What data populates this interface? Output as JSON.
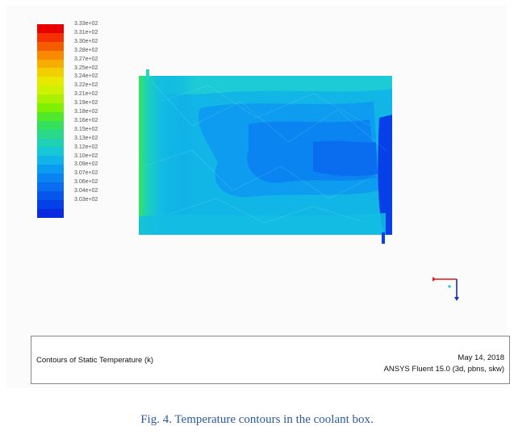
{
  "legend": {
    "colors": [
      "#e80000",
      "#f23000",
      "#f55c00",
      "#f78a00",
      "#f7ad00",
      "#f2d000",
      "#e8e800",
      "#cff000",
      "#aaf000",
      "#7ff000",
      "#4fe82a",
      "#34e05c",
      "#29d88b",
      "#1fd0b2",
      "#16c7d4",
      "#10b4e8",
      "#0a9cf0",
      "#0a84f0",
      "#0a6cef",
      "#0656ec",
      "#0440e8",
      "#0a2ae0"
    ],
    "labels": [
      "3.33e+02",
      "3.31e+02",
      "3.30e+02",
      "3.28e+02",
      "3.27e+02",
      "3.25e+02",
      "3.24e+02",
      "3.22e+02",
      "3.21e+02",
      "3.19e+02",
      "3.18e+02",
      "3.16e+02",
      "3.15e+02",
      "3.13e+02",
      "3.12e+02",
      "3.10e+02",
      "3.09e+02",
      "3.07e+02",
      "3.06e+02",
      "3.04e+02",
      "3.03e+02"
    ]
  },
  "info": {
    "title": "Contours of Static Temperature (k)",
    "date": "May 14, 2018",
    "version": "ANSYS Fluent 15.0 (3d, pbns, skw)"
  },
  "caption": "Fig. 4. Temperature contours in the coolant box."
}
